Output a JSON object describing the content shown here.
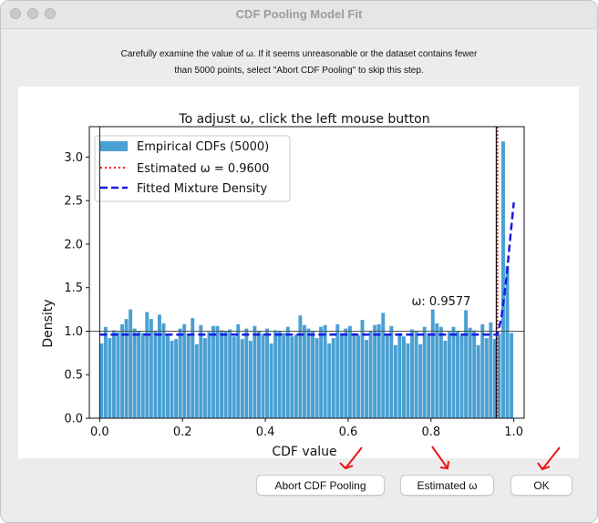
{
  "window": {
    "title": "CDF Pooling Model Fit"
  },
  "instructions": {
    "line1": "Carefully examine the value of ω. If it seems unreasonable or the dataset contains fewer",
    "line2": "than 5000 points, select \"Abort CDF Pooling\" to skip this step."
  },
  "chart_data": {
    "type": "bar",
    "title": "To adjust ω, click the left mouse button",
    "xlabel": "CDF value",
    "ylabel": "Density",
    "xlim": [
      -0.025,
      1.025
    ],
    "ylim": [
      0,
      3.35
    ],
    "xticks": [
      "0.0",
      "0.2",
      "0.4",
      "0.6",
      "0.8",
      "1.0"
    ],
    "yticks": [
      "0.0",
      "0.5",
      "1.0",
      "1.5",
      "2.0",
      "2.5",
      "3.0"
    ],
    "bin_width": 0.01,
    "bin_values": [
      0.86,
      1.05,
      0.92,
      1.01,
      0.99,
      1.08,
      1.14,
      1.25,
      1.03,
      1.0,
      0.98,
      1.22,
      1.14,
      1.0,
      1.19,
      1.09,
      0.97,
      0.89,
      0.91,
      1.03,
      1.08,
      0.97,
      1.15,
      0.85,
      1.07,
      0.92,
      0.99,
      1.06,
      1.06,
      1.01,
      1.0,
      1.02,
      0.94,
      1.08,
      0.91,
      1.03,
      0.89,
      1.06,
      1.0,
      0.97,
      1.03,
      0.86,
      1.01,
      1.0,
      0.98,
      1.05,
      0.94,
      0.96,
      1.18,
      1.07,
      1.03,
      1.0,
      0.92,
      1.05,
      1.07,
      0.86,
      0.92,
      1.08,
      0.98,
      1.03,
      1.06,
      0.98,
      0.95,
      1.13,
      0.9,
      1.0,
      1.07,
      1.08,
      1.21,
      0.95,
      1.06,
      0.84,
      0.98,
      0.94,
      0.86,
      1.02,
      1.0,
      0.85,
      1.05,
      0.98,
      1.25,
      1.09,
      1.05,
      0.89,
      0.99,
      1.05,
      1.0,
      0.95,
      1.24,
      1.04,
      1.01,
      0.84,
      1.08,
      0.92,
      1.1,
      0.91,
      0.97,
      3.18,
      1.75,
      0.98
    ],
    "hline": 1.0,
    "omega_estimated": 0.96,
    "omega_click": 0.9577,
    "omega_click_label": "ω: 0.9577",
    "mixture_uniform_density": 0.96,
    "mixture_peak_density": 2.48,
    "legend": {
      "position": "upper-left",
      "entries": [
        {
          "label": "Empirical CDFs (5000)",
          "color": "#4aa0d2",
          "kind": "patch"
        },
        {
          "label": "Estimated ω = 0.9600",
          "color": "#ff0000",
          "kind": "dotted"
        },
        {
          "label": "Fitted Mixture Density",
          "color": "#1a1ae6",
          "kind": "dashed"
        }
      ]
    },
    "colors": {
      "bars": "#4aa0d2",
      "vline": "#1a1a1a",
      "hline": "#555555"
    }
  },
  "buttons": {
    "abort": "Abort CDF Pooling",
    "estimated": "Estimated ω",
    "ok": "OK"
  },
  "annotation_color": "#e8161a"
}
